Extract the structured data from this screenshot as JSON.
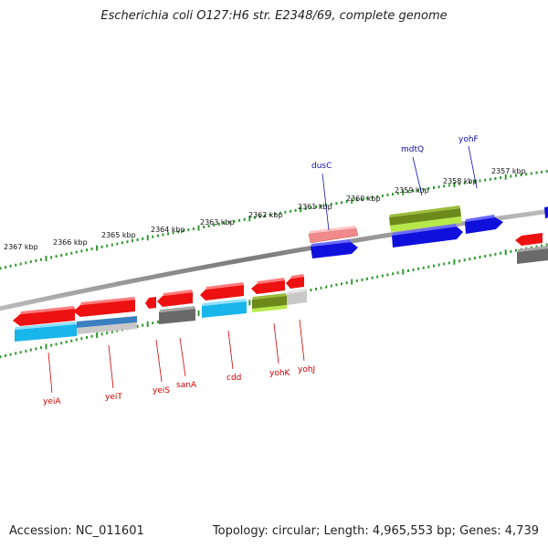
{
  "title": "Escherichia coli O127:H6 str. E2348/69, complete genome",
  "footer": {
    "accession": "Accession: NC_011601",
    "summary": "Topology: circular; Length: 4,965,553 bp; Genes: 4,739"
  },
  "colors": {
    "backbone": "#8a8a8a",
    "tick_dot": "#2f9a2f",
    "label_top": "#1010b0",
    "label_bottom": "#cc0000",
    "red": "#ee1111",
    "pink": "#f08a8a",
    "blue": "#1010dd",
    "cyan": "#18b6ea",
    "olive": "#6b8a1a",
    "lime": "#b6e84a",
    "grey": "#6a6a6a",
    "lightgrey": "#c8c8c8",
    "steelblue": "#3a7fc0"
  },
  "scale": {
    "ticks": [
      {
        "label": "2367 kbp"
      },
      {
        "label": "2366 kbp"
      },
      {
        "label": "2365 kbp"
      },
      {
        "label": "2364 kbp"
      },
      {
        "label": "2363 kbp"
      },
      {
        "label": "2362 kbp"
      },
      {
        "label": "2361 kbp"
      },
      {
        "label": "2360 kbp"
      },
      {
        "label": "2359 kbp"
      },
      {
        "label": "2358 kbp"
      },
      {
        "label": "2357 kbp"
      }
    ]
  },
  "gene_labels_top": [
    {
      "name": "dusC"
    },
    {
      "name": "mdtQ"
    },
    {
      "name": "yohF"
    }
  ],
  "gene_labels_bottom": [
    {
      "name": "yeiA"
    },
    {
      "name": "yeiT"
    },
    {
      "name": "yeiS"
    },
    {
      "name": "sanA"
    },
    {
      "name": "cdd"
    },
    {
      "name": "yohK"
    },
    {
      "name": "yohJ"
    }
  ]
}
